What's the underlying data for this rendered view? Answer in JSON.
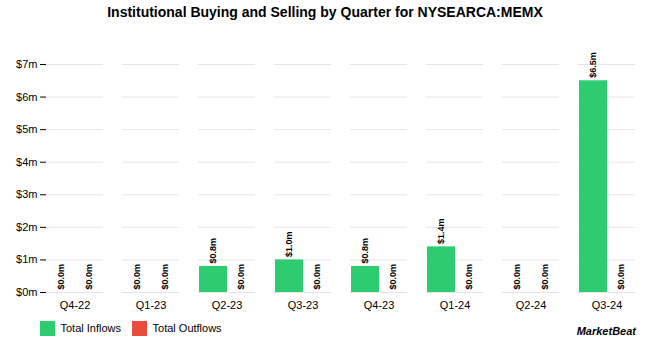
{
  "chart_data": {
    "type": "bar",
    "title": "Institutional Buying and Selling by Quarter for NYSEARCA:MEMX",
    "categories": [
      "Q4-22",
      "Q1-23",
      "Q2-23",
      "Q3-23",
      "Q4-23",
      "Q1-24",
      "Q2-24",
      "Q3-24"
    ],
    "series": [
      {
        "name": "Total Inflows",
        "color": "#2ecc71",
        "values": [
          0.0,
          0.0,
          0.8,
          1.0,
          0.8,
          1.4,
          0.0,
          6.5
        ],
        "value_labels": [
          "$0.0m",
          "$0.0m",
          "$0.8m",
          "$1.0m",
          "$0.8m",
          "$1.4m",
          "$0.0m",
          "$6.5m"
        ]
      },
      {
        "name": "Total Outflows",
        "color": "#e74c3c",
        "values": [
          0.0,
          0.0,
          0.0,
          0.0,
          0.0,
          0.0,
          0.0,
          0.0
        ],
        "value_labels": [
          "$0.0m",
          "$0.0m",
          "$0.0m",
          "$0.0m",
          "$0.0m",
          "$0.0m",
          "$0.0m",
          "$0.0m"
        ]
      }
    ],
    "ylim": [
      0,
      7
    ],
    "yticks": [
      {
        "value": 0,
        "label": "$0m"
      },
      {
        "value": 1,
        "label": "$1m"
      },
      {
        "value": 2,
        "label": "$2m"
      },
      {
        "value": 3,
        "label": "$3m"
      },
      {
        "value": 4,
        "label": "$4m"
      },
      {
        "value": 5,
        "label": "$5m"
      },
      {
        "value": 6,
        "label": "$6m"
      },
      {
        "value": 7,
        "label": "$7m"
      }
    ],
    "grid": true,
    "legend": "lower left",
    "data_labels": true,
    "annotations": [
      "MarketBeat"
    ]
  }
}
